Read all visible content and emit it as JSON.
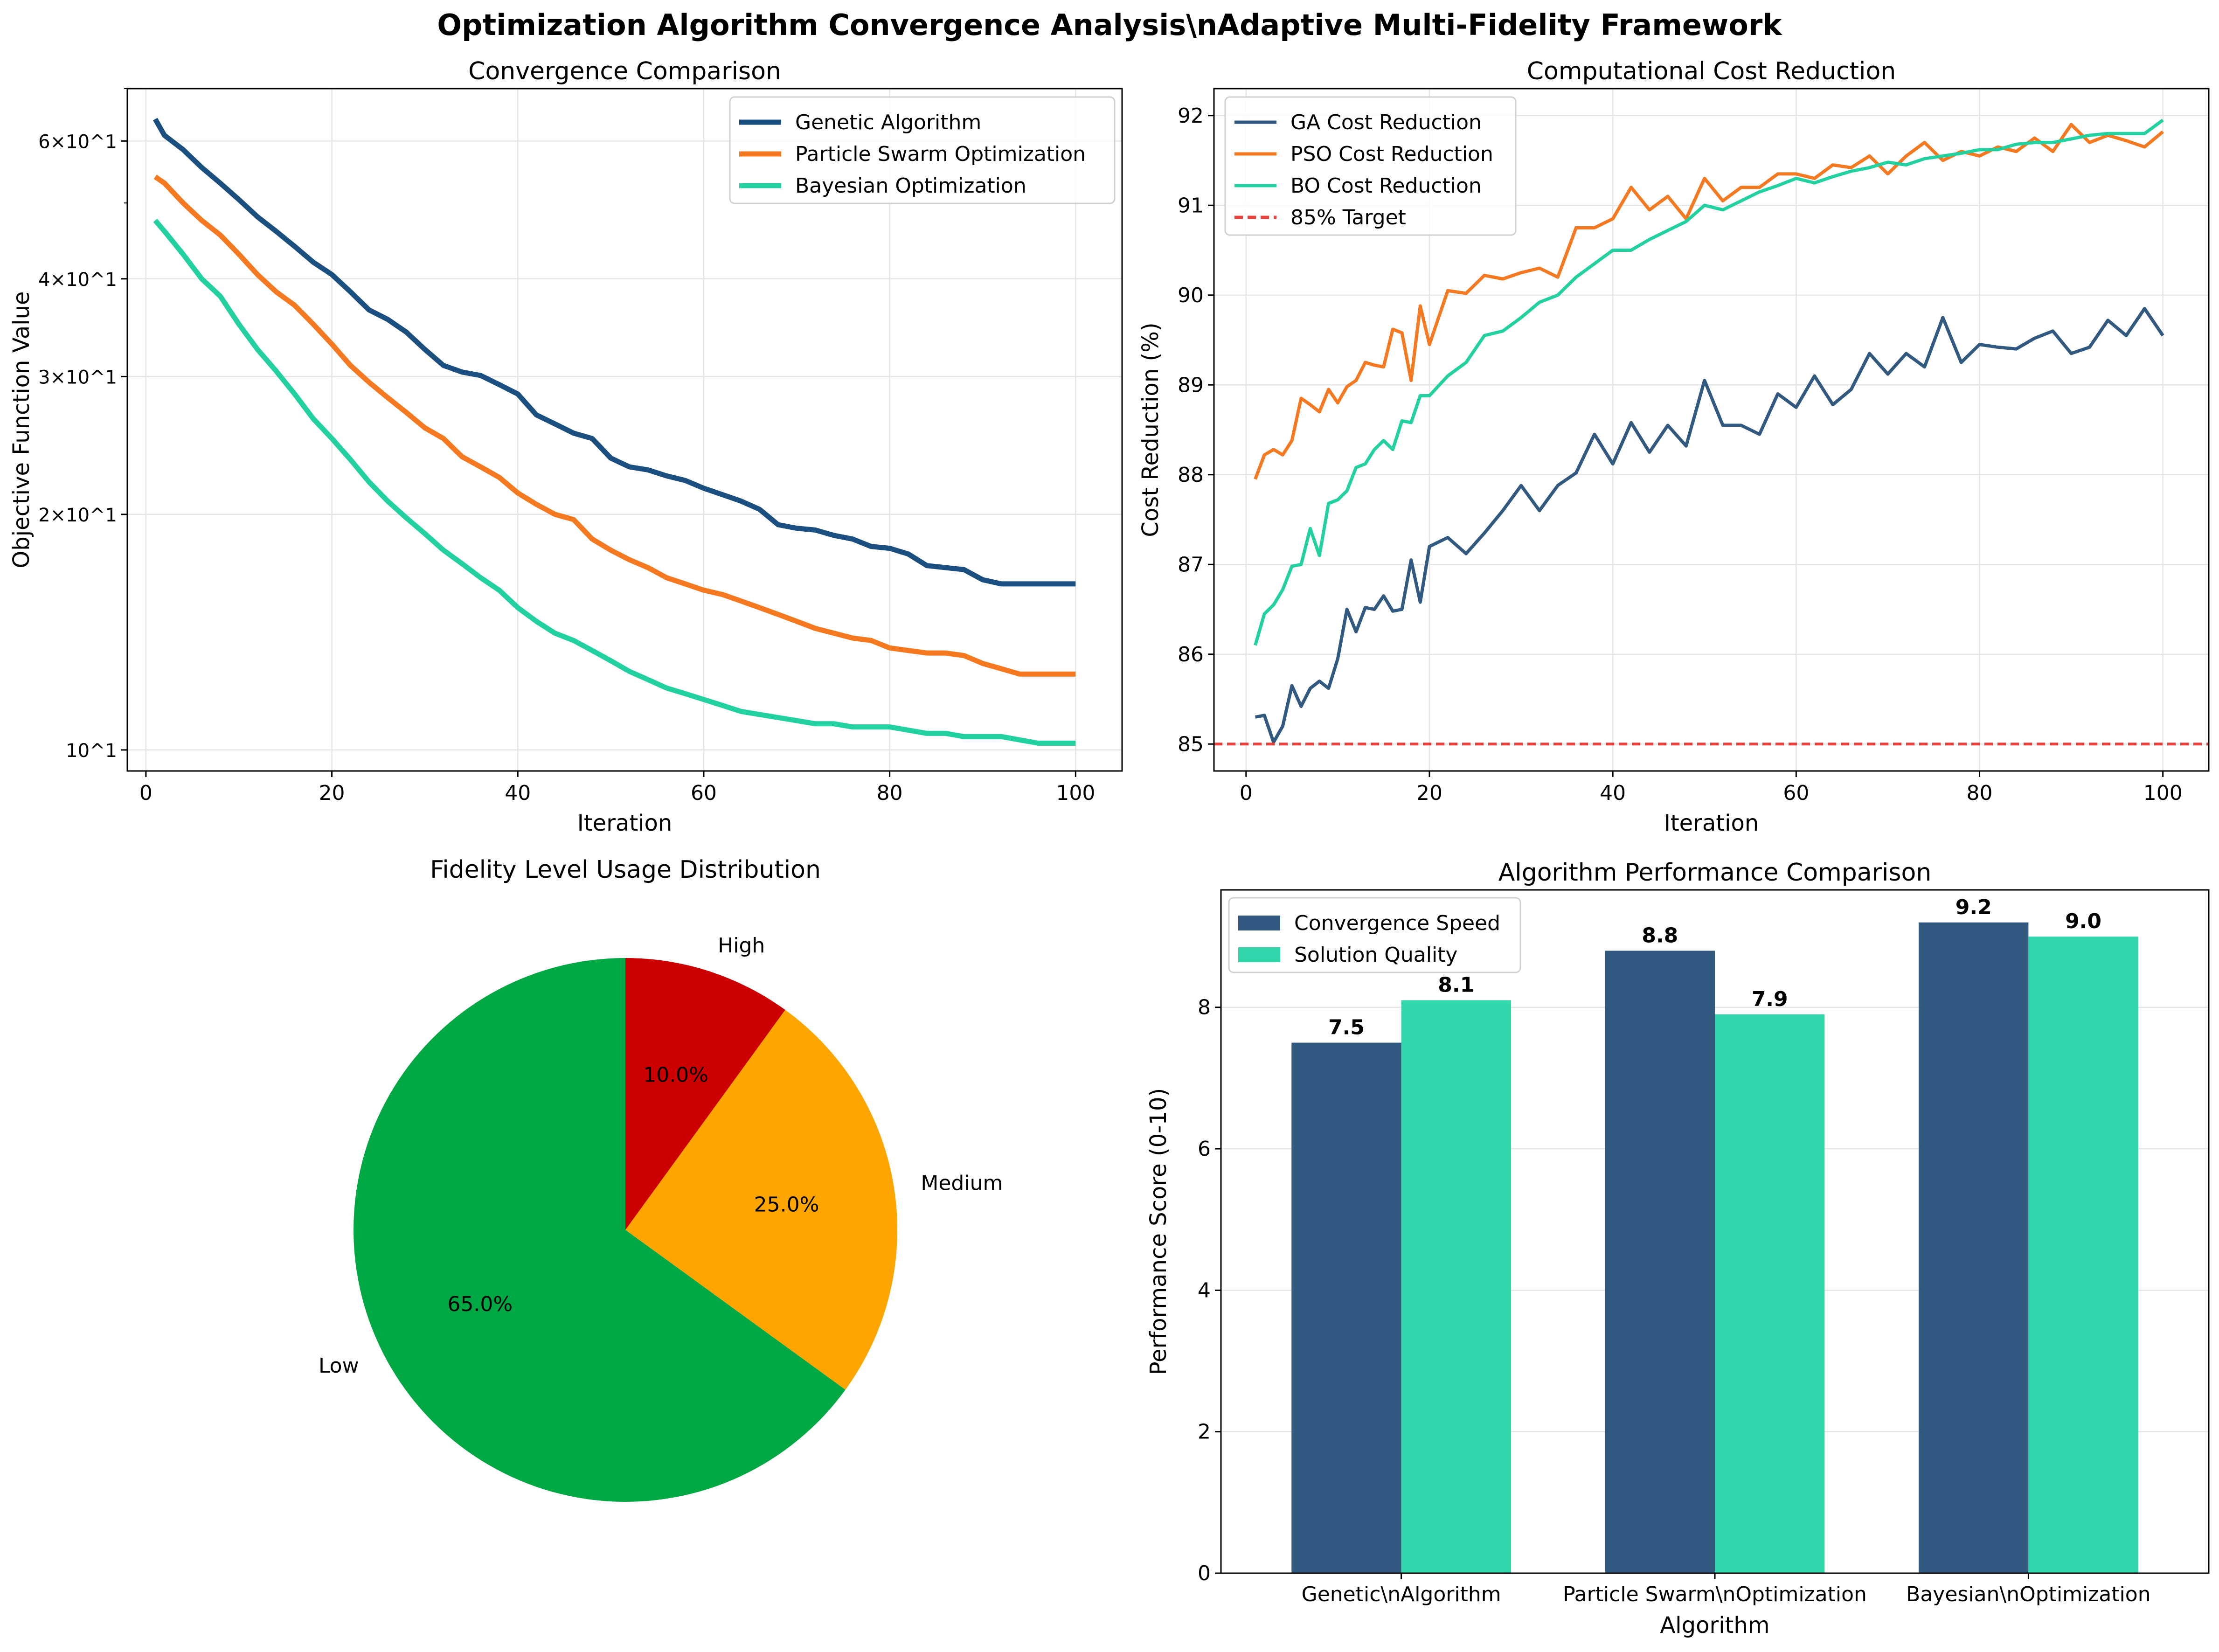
{
  "figure_title": "Optimization Algorithm Convergence Analysis\\nAdaptive Multi-Fidelity Framework",
  "colors": {
    "ga": "#1b4f7f",
    "pso": "#f47920",
    "bo": "#23d0a0",
    "target": "#e8413c",
    "low": "#00a844",
    "medium": "#ffa500",
    "high": "#cc0000",
    "speed": "#32597f",
    "quality": "#32d6ab"
  },
  "chart_data": [
    {
      "type": "line",
      "title": "Convergence Comparison",
      "xlabel": "Iteration",
      "ylabel": "Objective Function Value",
      "yscale": "log",
      "xlim": [
        -2,
        105
      ],
      "ylim": [
        9.4,
        70
      ],
      "xticks": [
        0,
        20,
        40,
        60,
        80,
        100
      ],
      "yticks": [
        {
          "value": 10,
          "label": "10^1"
        },
        {
          "value": 20,
          "label": "2×10^1"
        },
        {
          "value": 30,
          "label": "3×10^1"
        },
        {
          "value": 40,
          "label": "4×10^1"
        },
        {
          "value": 60,
          "label": "6×10^1"
        }
      ],
      "grid": true,
      "legend": "upper right",
      "series": [
        {
          "name": "Genetic Algorithm",
          "color": "#1b4f7f",
          "x": [
            1,
            2,
            4,
            6,
            8,
            10,
            12,
            14,
            16,
            18,
            20,
            22,
            24,
            26,
            28,
            30,
            32,
            34,
            36,
            38,
            40,
            42,
            44,
            46,
            48,
            50,
            52,
            54,
            56,
            58,
            60,
            62,
            64,
            66,
            68,
            70,
            72,
            74,
            76,
            78,
            80,
            82,
            84,
            86,
            88,
            90,
            92,
            94,
            96,
            98,
            100
          ],
          "y": [
            64,
            61,
            58.5,
            55.5,
            53,
            50.5,
            48,
            46,
            44,
            42,
            40.5,
            38.5,
            36.5,
            35.5,
            34.2,
            32.5,
            31,
            30.4,
            30.1,
            29.3,
            28.5,
            26.8,
            26.1,
            25.4,
            25,
            23.6,
            23,
            22.8,
            22.4,
            22.1,
            21.6,
            21.2,
            20.8,
            20.3,
            19.4,
            19.2,
            19.1,
            18.8,
            18.6,
            18.2,
            18.1,
            17.8,
            17.2,
            17.1,
            17,
            16.5,
            16.3,
            16.3,
            16.3,
            16.3,
            16.3
          ]
        },
        {
          "name": "Particle Swarm Optimization",
          "color": "#f47920",
          "x": [
            1,
            2,
            4,
            6,
            8,
            10,
            12,
            14,
            16,
            18,
            20,
            22,
            24,
            26,
            28,
            30,
            32,
            34,
            36,
            38,
            40,
            42,
            44,
            46,
            48,
            50,
            52,
            54,
            56,
            58,
            60,
            62,
            64,
            66,
            68,
            70,
            72,
            74,
            76,
            78,
            80,
            82,
            84,
            86,
            88,
            90,
            92,
            94,
            96,
            98,
            100
          ],
          "y": [
            54,
            53,
            50,
            47.5,
            45.5,
            43,
            40.5,
            38.5,
            37,
            35,
            33,
            31,
            29.5,
            28.2,
            27,
            25.8,
            25,
            23.7,
            23,
            22.3,
            21.3,
            20.6,
            20,
            19.7,
            18.6,
            18,
            17.5,
            17.1,
            16.6,
            16.3,
            16,
            15.8,
            15.5,
            15.2,
            14.9,
            14.6,
            14.3,
            14.1,
            13.9,
            13.8,
            13.5,
            13.4,
            13.3,
            13.3,
            13.2,
            12.9,
            12.7,
            12.5,
            12.5,
            12.5,
            12.5
          ]
        },
        {
          "name": "Bayesian Optimization",
          "color": "#23d0a0",
          "x": [
            1,
            2,
            4,
            6,
            8,
            10,
            12,
            14,
            16,
            18,
            20,
            22,
            24,
            26,
            28,
            30,
            32,
            34,
            36,
            38,
            40,
            42,
            44,
            46,
            48,
            50,
            52,
            54,
            56,
            58,
            60,
            62,
            64,
            66,
            68,
            70,
            72,
            74,
            76,
            78,
            80,
            82,
            84,
            86,
            88,
            90,
            92,
            94,
            96,
            98,
            100
          ],
          "y": [
            47.5,
            46,
            43,
            40,
            38,
            35,
            32.5,
            30.5,
            28.5,
            26.5,
            25,
            23.5,
            22,
            20.8,
            19.8,
            18.9,
            18,
            17.3,
            16.6,
            16,
            15.2,
            14.6,
            14.1,
            13.8,
            13.4,
            13,
            12.6,
            12.3,
            12,
            11.8,
            11.6,
            11.4,
            11.2,
            11.1,
            11,
            10.9,
            10.8,
            10.8,
            10.7,
            10.7,
            10.7,
            10.6,
            10.5,
            10.5,
            10.4,
            10.4,
            10.4,
            10.3,
            10.2,
            10.2,
            10.2
          ]
        }
      ]
    },
    {
      "type": "line",
      "title": "Computational Cost Reduction",
      "xlabel": "Iteration",
      "ylabel": "Cost Reduction (%)",
      "xlim": [
        -3.5,
        105
      ],
      "ylim": [
        84.7,
        92.3
      ],
      "xticks": [
        0,
        20,
        40,
        60,
        80,
        100
      ],
      "yticks": [
        85,
        86,
        87,
        88,
        89,
        90,
        91,
        92
      ],
      "grid": true,
      "legend": "upper left",
      "series": [
        {
          "name": "GA Cost Reduction",
          "color": "#32597f",
          "x": [
            1,
            2,
            3,
            4,
            5,
            6,
            7,
            8,
            9,
            10,
            11,
            12,
            13,
            14,
            15,
            16,
            17,
            18,
            19,
            20,
            22,
            24,
            26,
            28,
            30,
            32,
            34,
            36,
            38,
            40,
            42,
            44,
            46,
            48,
            50,
            52,
            54,
            56,
            58,
            60,
            62,
            64,
            66,
            68,
            70,
            72,
            74,
            76,
            78,
            80,
            82,
            84,
            86,
            88,
            90,
            92,
            94,
            96,
            98,
            100
          ],
          "y": [
            85.3,
            85.32,
            85.02,
            85.2,
            85.65,
            85.42,
            85.62,
            85.7,
            85.62,
            85.95,
            86.5,
            86.25,
            86.52,
            86.5,
            86.65,
            86.48,
            86.5,
            87.05,
            86.58,
            87.2,
            87.3,
            87.12,
            87.35,
            87.6,
            87.88,
            87.6,
            87.88,
            88.02,
            88.45,
            88.12,
            88.58,
            88.25,
            88.55,
            88.32,
            89.05,
            88.55,
            88.55,
            88.45,
            88.9,
            88.75,
            89.1,
            88.78,
            88.95,
            89.35,
            89.12,
            89.35,
            89.2,
            89.75,
            89.25,
            89.45,
            89.42,
            89.4,
            89.52,
            89.6,
            89.35,
            89.42,
            89.72,
            89.55,
            89.85,
            89.55
          ]
        },
        {
          "name": "PSO Cost Reduction",
          "color": "#f47920",
          "x": [
            1,
            2,
            3,
            4,
            5,
            6,
            7,
            8,
            9,
            10,
            11,
            12,
            13,
            14,
            15,
            16,
            17,
            18,
            19,
            20,
            22,
            24,
            26,
            28,
            30,
            32,
            34,
            36,
            38,
            40,
            42,
            44,
            46,
            48,
            50,
            52,
            54,
            56,
            58,
            60,
            62,
            64,
            66,
            68,
            70,
            72,
            74,
            76,
            78,
            80,
            82,
            84,
            86,
            88,
            90,
            92,
            94,
            96,
            98,
            100
          ],
          "y": [
            87.95,
            88.22,
            88.28,
            88.22,
            88.38,
            88.85,
            88.78,
            88.7,
            88.95,
            88.8,
            88.98,
            89.05,
            89.25,
            89.22,
            89.2,
            89.62,
            89.58,
            89.05,
            89.88,
            89.45,
            90.05,
            90.02,
            90.22,
            90.18,
            90.25,
            90.3,
            90.2,
            90.75,
            90.75,
            90.85,
            91.2,
            90.95,
            91.1,
            90.85,
            91.3,
            91.05,
            91.2,
            91.2,
            91.35,
            91.35,
            91.3,
            91.45,
            91.42,
            91.55,
            91.35,
            91.55,
            91.7,
            91.5,
            91.6,
            91.55,
            91.65,
            91.6,
            91.75,
            91.6,
            91.9,
            91.7,
            91.78,
            91.72,
            91.65,
            91.82
          ]
        },
        {
          "name": "BO Cost Reduction",
          "color": "#23d0a0",
          "x": [
            1,
            2,
            3,
            4,
            5,
            6,
            7,
            8,
            9,
            10,
            11,
            12,
            13,
            14,
            15,
            16,
            17,
            18,
            19,
            20,
            22,
            24,
            26,
            28,
            30,
            32,
            34,
            36,
            38,
            40,
            42,
            44,
            46,
            48,
            50,
            52,
            54,
            56,
            58,
            60,
            62,
            64,
            66,
            68,
            70,
            72,
            74,
            76,
            78,
            80,
            82,
            84,
            86,
            88,
            90,
            92,
            94,
            96,
            98,
            100
          ],
          "y": [
            86.1,
            86.45,
            86.55,
            86.72,
            86.98,
            87.0,
            87.4,
            87.1,
            87.68,
            87.72,
            87.82,
            88.08,
            88.12,
            88.28,
            88.38,
            88.28,
            88.6,
            88.58,
            88.88,
            88.88,
            89.1,
            89.25,
            89.55,
            89.6,
            89.75,
            89.92,
            90.0,
            90.2,
            90.35,
            90.5,
            90.5,
            90.62,
            90.72,
            90.82,
            91.0,
            90.95,
            91.05,
            91.15,
            91.22,
            91.3,
            91.25,
            91.32,
            91.38,
            91.42,
            91.48,
            91.45,
            91.52,
            91.55,
            91.58,
            91.62,
            91.62,
            91.68,
            91.7,
            91.7,
            91.74,
            91.78,
            91.8,
            91.8,
            91.8,
            91.95
          ]
        },
        {
          "name": "85% Target",
          "color": "#e8413c",
          "dashed": true,
          "y_const": 85
        }
      ]
    },
    {
      "type": "pie",
      "title": "Fidelity Level Usage Distribution",
      "labels": [
        "High",
        "Medium",
        "Low"
      ],
      "values": [
        10.0,
        25.0,
        65.0
      ],
      "pct_labels": [
        "10.0%",
        "25.0%",
        "65.0%"
      ],
      "colors": [
        "#cc0000",
        "#ffa500",
        "#00a844"
      ],
      "start_angle_deg": 90,
      "direction": "clockwise"
    },
    {
      "type": "bar",
      "title": "Algorithm Performance Comparison",
      "xlabel": "Algorithm",
      "ylabel": "Performance Score (0-10)",
      "categories": [
        "Genetic\\nAlgorithm",
        "Particle Swarm\\nOptimization",
        "Bayesian\\nOptimization"
      ],
      "ylim": [
        0,
        9.66
      ],
      "yticks": [
        0,
        2,
        4,
        6,
        8
      ],
      "grid": true,
      "legend": "upper left",
      "series": [
        {
          "name": "Convergence Speed",
          "color": "#32597f",
          "values": [
            7.5,
            8.8,
            9.2
          ],
          "labels": [
            "7.5",
            "8.8",
            "9.2"
          ]
        },
        {
          "name": "Solution Quality",
          "color": "#32d6ab",
          "values": [
            8.1,
            7.9,
            9.0
          ],
          "labels": [
            "8.1",
            "7.9",
            "9.0"
          ]
        }
      ]
    }
  ]
}
